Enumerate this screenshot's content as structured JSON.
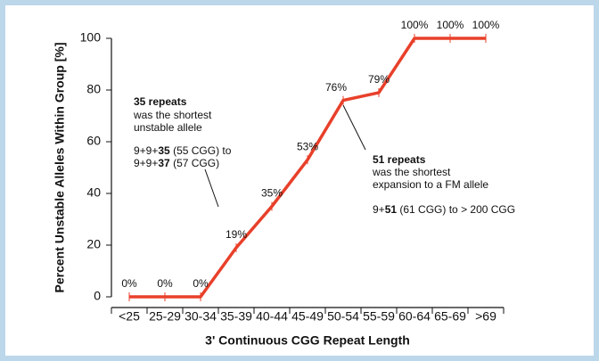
{
  "chart_data": {
    "type": "line",
    "x_label": "3' Continuous CGG Repeat Length",
    "y_label": "Percent Unstable Alleles Within Group [%]",
    "categories": [
      "<25",
      "25-29",
      "30-34",
      "35-39",
      "40-44",
      "45-49",
      "50-54",
      "55-59",
      "60-64",
      "65-69",
      ">69"
    ],
    "values": [
      0,
      0,
      0,
      19,
      35,
      53,
      76,
      79,
      100,
      100,
      100
    ],
    "value_labels": [
      "0%",
      "0%",
      "0%",
      "19%",
      "35%",
      "53%",
      "76%",
      "79%",
      "100%",
      "100%",
      "100%"
    ],
    "color": "#e8402a",
    "ylim": [
      0,
      100
    ],
    "yticks": [
      0,
      20,
      40,
      60,
      80,
      100
    ],
    "annotations": [
      {
        "lines": [
          [
            {
              "text": "35 repeats",
              "bold": true
            }
          ],
          [
            {
              "text": "was the shortest",
              "bold": false
            }
          ],
          [
            {
              "text": "unstable allele",
              "bold": false
            }
          ],
          [
            {
              "text": "9+9+",
              "bold": false
            },
            {
              "text": "35",
              "bold": true
            },
            {
              "text": " (55 CGG) to",
              "bold": false
            }
          ],
          [
            {
              "text": "9+9+",
              "bold": false
            },
            {
              "text": "37",
              "bold": true
            },
            {
              "text": " (57 CGG)",
              "bold": false
            }
          ]
        ]
      },
      {
        "lines": [
          [
            {
              "text": "51 repeats",
              "bold": true
            }
          ],
          [
            {
              "text": "was the shortest",
              "bold": false
            }
          ],
          [
            {
              "text": "expansion to a FM allele",
              "bold": false
            }
          ],
          [
            {
              "text": "9+",
              "bold": false
            },
            {
              "text": "51",
              "bold": true
            },
            {
              "text": " (61 CGG) to > 200 CGG",
              "bold": false
            }
          ]
        ]
      }
    ]
  }
}
